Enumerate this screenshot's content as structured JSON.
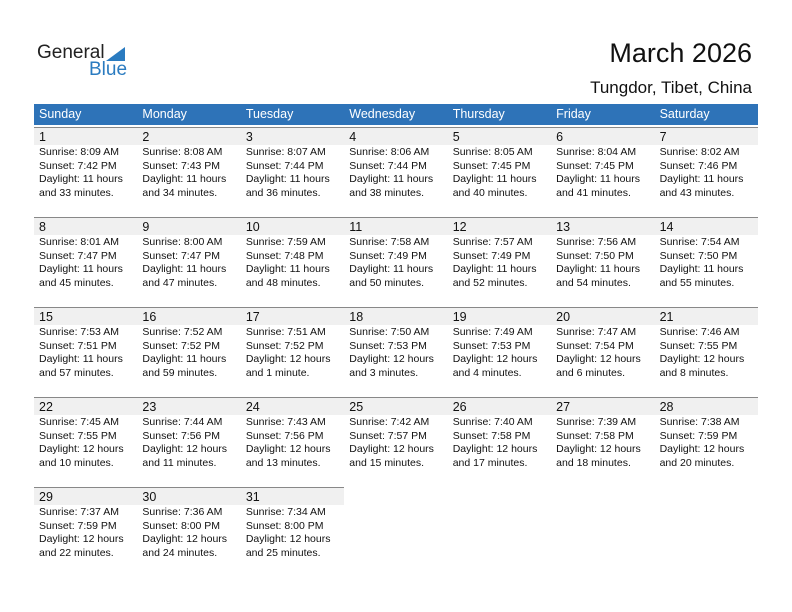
{
  "logo": {
    "word1": "General",
    "word2": "Blue"
  },
  "title": "March 2026",
  "location": "Tungdor, Tibet, China",
  "colors": {
    "header": "#2e73b8",
    "logo_blue": "#2a7bc0",
    "day_band": "#f0f0f0"
  },
  "weekdays": [
    "Sunday",
    "Monday",
    "Tuesday",
    "Wednesday",
    "Thursday",
    "Friday",
    "Saturday"
  ],
  "weeks": [
    [
      {
        "day": "1",
        "sunrise": "Sunrise: 8:09 AM",
        "sunset": "Sunset: 7:42 PM",
        "daylight1": "Daylight: 11 hours",
        "daylight2": "and 33 minutes."
      },
      {
        "day": "2",
        "sunrise": "Sunrise: 8:08 AM",
        "sunset": "Sunset: 7:43 PM",
        "daylight1": "Daylight: 11 hours",
        "daylight2": "and 34 minutes."
      },
      {
        "day": "3",
        "sunrise": "Sunrise: 8:07 AM",
        "sunset": "Sunset: 7:44 PM",
        "daylight1": "Daylight: 11 hours",
        "daylight2": "and 36 minutes."
      },
      {
        "day": "4",
        "sunrise": "Sunrise: 8:06 AM",
        "sunset": "Sunset: 7:44 PM",
        "daylight1": "Daylight: 11 hours",
        "daylight2": "and 38 minutes."
      },
      {
        "day": "5",
        "sunrise": "Sunrise: 8:05 AM",
        "sunset": "Sunset: 7:45 PM",
        "daylight1": "Daylight: 11 hours",
        "daylight2": "and 40 minutes."
      },
      {
        "day": "6",
        "sunrise": "Sunrise: 8:04 AM",
        "sunset": "Sunset: 7:45 PM",
        "daylight1": "Daylight: 11 hours",
        "daylight2": "and 41 minutes."
      },
      {
        "day": "7",
        "sunrise": "Sunrise: 8:02 AM",
        "sunset": "Sunset: 7:46 PM",
        "daylight1": "Daylight: 11 hours",
        "daylight2": "and 43 minutes."
      }
    ],
    [
      {
        "day": "8",
        "sunrise": "Sunrise: 8:01 AM",
        "sunset": "Sunset: 7:47 PM",
        "daylight1": "Daylight: 11 hours",
        "daylight2": "and 45 minutes."
      },
      {
        "day": "9",
        "sunrise": "Sunrise: 8:00 AM",
        "sunset": "Sunset: 7:47 PM",
        "daylight1": "Daylight: 11 hours",
        "daylight2": "and 47 minutes."
      },
      {
        "day": "10",
        "sunrise": "Sunrise: 7:59 AM",
        "sunset": "Sunset: 7:48 PM",
        "daylight1": "Daylight: 11 hours",
        "daylight2": "and 48 minutes."
      },
      {
        "day": "11",
        "sunrise": "Sunrise: 7:58 AM",
        "sunset": "Sunset: 7:49 PM",
        "daylight1": "Daylight: 11 hours",
        "daylight2": "and 50 minutes."
      },
      {
        "day": "12",
        "sunrise": "Sunrise: 7:57 AM",
        "sunset": "Sunset: 7:49 PM",
        "daylight1": "Daylight: 11 hours",
        "daylight2": "and 52 minutes."
      },
      {
        "day": "13",
        "sunrise": "Sunrise: 7:56 AM",
        "sunset": "Sunset: 7:50 PM",
        "daylight1": "Daylight: 11 hours",
        "daylight2": "and 54 minutes."
      },
      {
        "day": "14",
        "sunrise": "Sunrise: 7:54 AM",
        "sunset": "Sunset: 7:50 PM",
        "daylight1": "Daylight: 11 hours",
        "daylight2": "and 55 minutes."
      }
    ],
    [
      {
        "day": "15",
        "sunrise": "Sunrise: 7:53 AM",
        "sunset": "Sunset: 7:51 PM",
        "daylight1": "Daylight: 11 hours",
        "daylight2": "and 57 minutes."
      },
      {
        "day": "16",
        "sunrise": "Sunrise: 7:52 AM",
        "sunset": "Sunset: 7:52 PM",
        "daylight1": "Daylight: 11 hours",
        "daylight2": "and 59 minutes."
      },
      {
        "day": "17",
        "sunrise": "Sunrise: 7:51 AM",
        "sunset": "Sunset: 7:52 PM",
        "daylight1": "Daylight: 12 hours",
        "daylight2": "and 1 minute."
      },
      {
        "day": "18",
        "sunrise": "Sunrise: 7:50 AM",
        "sunset": "Sunset: 7:53 PM",
        "daylight1": "Daylight: 12 hours",
        "daylight2": "and 3 minutes."
      },
      {
        "day": "19",
        "sunrise": "Sunrise: 7:49 AM",
        "sunset": "Sunset: 7:53 PM",
        "daylight1": "Daylight: 12 hours",
        "daylight2": "and 4 minutes."
      },
      {
        "day": "20",
        "sunrise": "Sunrise: 7:47 AM",
        "sunset": "Sunset: 7:54 PM",
        "daylight1": "Daylight: 12 hours",
        "daylight2": "and 6 minutes."
      },
      {
        "day": "21",
        "sunrise": "Sunrise: 7:46 AM",
        "sunset": "Sunset: 7:55 PM",
        "daylight1": "Daylight: 12 hours",
        "daylight2": "and 8 minutes."
      }
    ],
    [
      {
        "day": "22",
        "sunrise": "Sunrise: 7:45 AM",
        "sunset": "Sunset: 7:55 PM",
        "daylight1": "Daylight: 12 hours",
        "daylight2": "and 10 minutes."
      },
      {
        "day": "23",
        "sunrise": "Sunrise: 7:44 AM",
        "sunset": "Sunset: 7:56 PM",
        "daylight1": "Daylight: 12 hours",
        "daylight2": "and 11 minutes."
      },
      {
        "day": "24",
        "sunrise": "Sunrise: 7:43 AM",
        "sunset": "Sunset: 7:56 PM",
        "daylight1": "Daylight: 12 hours",
        "daylight2": "and 13 minutes."
      },
      {
        "day": "25",
        "sunrise": "Sunrise: 7:42 AM",
        "sunset": "Sunset: 7:57 PM",
        "daylight1": "Daylight: 12 hours",
        "daylight2": "and 15 minutes."
      },
      {
        "day": "26",
        "sunrise": "Sunrise: 7:40 AM",
        "sunset": "Sunset: 7:58 PM",
        "daylight1": "Daylight: 12 hours",
        "daylight2": "and 17 minutes."
      },
      {
        "day": "27",
        "sunrise": "Sunrise: 7:39 AM",
        "sunset": "Sunset: 7:58 PM",
        "daylight1": "Daylight: 12 hours",
        "daylight2": "and 18 minutes."
      },
      {
        "day": "28",
        "sunrise": "Sunrise: 7:38 AM",
        "sunset": "Sunset: 7:59 PM",
        "daylight1": "Daylight: 12 hours",
        "daylight2": "and 20 minutes."
      }
    ],
    [
      {
        "day": "29",
        "sunrise": "Sunrise: 7:37 AM",
        "sunset": "Sunset: 7:59 PM",
        "daylight1": "Daylight: 12 hours",
        "daylight2": "and 22 minutes."
      },
      {
        "day": "30",
        "sunrise": "Sunrise: 7:36 AM",
        "sunset": "Sunset: 8:00 PM",
        "daylight1": "Daylight: 12 hours",
        "daylight2": "and 24 minutes."
      },
      {
        "day": "31",
        "sunrise": "Sunrise: 7:34 AM",
        "sunset": "Sunset: 8:00 PM",
        "daylight1": "Daylight: 12 hours",
        "daylight2": "and 25 minutes."
      }
    ]
  ]
}
